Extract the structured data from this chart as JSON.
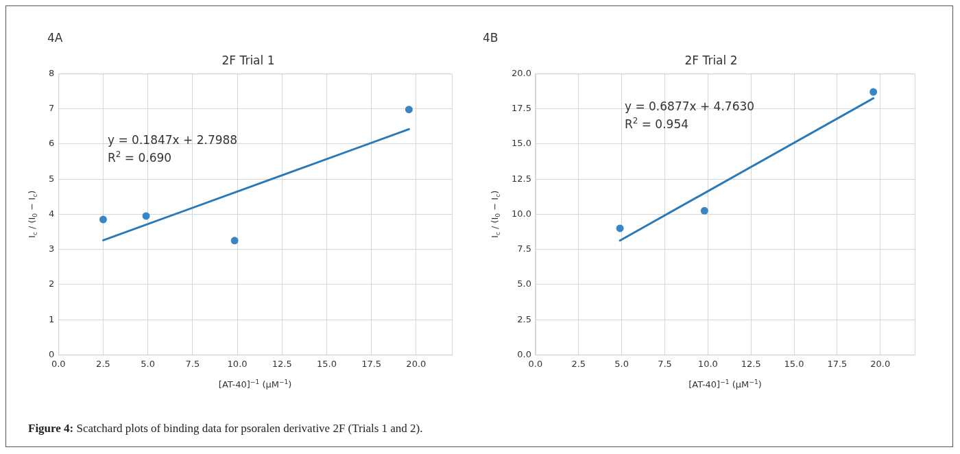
{
  "chart_data": [
    {
      "type": "scatter",
      "title": "2F Trial 1",
      "xlabel": "[AT-40]$^{−1}$ (μM$^{−1}$)",
      "ylabel": "I$_{c}$ / (I$_{0}$ − I$_{c}$)",
      "annotations": [
        "4A",
        "y = 0.1847x + 2.7988",
        "R$^{2}$ = 0.690",
        "Figure 4: Scatchard plots of binding data for psoralen derivative 2F (Trials 1 and 2)."
      ],
      "series": [
        {
          "type": "scatter",
          "color": "#3a86c4",
          "marker": "circle",
          "x": [
            2.5,
            4.9,
            9.85,
            19.6
          ],
          "values": [
            3.85,
            3.95,
            3.25,
            6.98
          ]
        },
        {
          "type": "line",
          "color": "#2a7ab9",
          "marker": "none",
          "x": [
            2.5,
            19.6
          ],
          "values": [
            3.26,
            6.42
          ]
        }
      ],
      "xlim": [
        0,
        22
      ],
      "ylim": [
        0,
        8
      ],
      "xticks": [
        {
          "value": 0,
          "label": "0.0"
        },
        {
          "value": 2.5,
          "label": "2.5"
        },
        {
          "value": 5,
          "label": "5.0"
        },
        {
          "value": 7.5,
          "label": "7.5"
        },
        {
          "value": 10,
          "label": "10.0"
        },
        {
          "value": 12.5,
          "label": "12.5"
        },
        {
          "value": 15,
          "label": "15.0"
        },
        {
          "value": 17.5,
          "label": "17.5"
        },
        {
          "value": 20,
          "label": "20.0"
        }
      ],
      "yticks": [
        0,
        1,
        2,
        3,
        4,
        5,
        6,
        7,
        8
      ],
      "grid": true
    },
    {
      "type": "scatter",
      "title": "2F Trial 2",
      "xlabel": "[AT-40]$^{−1}$ (μM$^{−1}$)",
      "ylabel": "I$_{c}$ / (I$_{0}$ − I$_{c}$)",
      "annotations": [
        "4B",
        "y = 0.6877x + 4.7630",
        "R$^{2}$ = 0.954"
      ],
      "series": [
        {
          "type": "scatter",
          "color": "#3a86c4",
          "marker": "circle",
          "x": [
            4.9,
            9.8,
            19.6
          ],
          "values": [
            9.0,
            10.25,
            18.7
          ]
        },
        {
          "type": "line",
          "color": "#2a7ab9",
          "marker": "none",
          "x": [
            4.9,
            19.6
          ],
          "values": [
            8.13,
            18.25
          ]
        }
      ],
      "xlim": [
        0,
        22
      ],
      "ylim": [
        0,
        20
      ],
      "xticks": [
        {
          "value": 0,
          "label": "0.0"
        },
        {
          "value": 2.5,
          "label": "2.5"
        },
        {
          "value": 5,
          "label": "5.0"
        },
        {
          "value": 7.5,
          "label": "7.5"
        },
        {
          "value": 10,
          "label": "10.0"
        },
        {
          "value": 12.5,
          "label": "12.5"
        },
        {
          "value": 15,
          "label": "15.0"
        },
        {
          "value": 17.5,
          "label": "17.5"
        },
        {
          "value": 20,
          "label": "20.0"
        }
      ],
      "yticks": [
        {
          "value": 0,
          "label": "0.0"
        },
        {
          "value": 2.5,
          "label": "2.5"
        },
        {
          "value": 5,
          "label": "5.0"
        },
        {
          "value": 7.5,
          "label": "7.5"
        },
        {
          "value": 10,
          "label": "10.0"
        },
        {
          "value": 12.5,
          "label": "12.5"
        },
        {
          "value": 15,
          "label": "15.0"
        },
        {
          "value": 17.5,
          "label": "17.5"
        },
        {
          "value": 20,
          "label": "20.0"
        }
      ],
      "grid": true
    }
  ]
}
